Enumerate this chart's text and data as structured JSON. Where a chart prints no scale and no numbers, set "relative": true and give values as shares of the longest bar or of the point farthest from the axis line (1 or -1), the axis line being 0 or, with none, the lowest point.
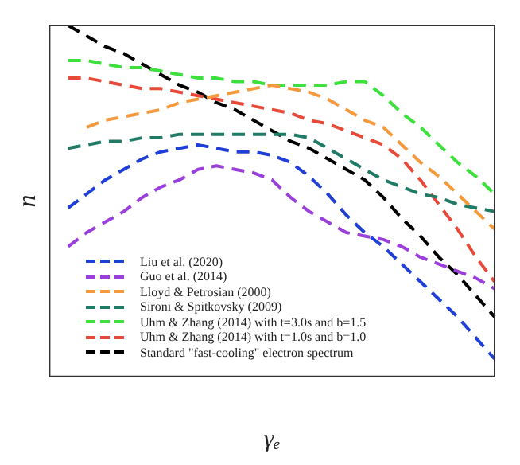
{
  "chart_data": {
    "type": "line",
    "relative": true,
    "xlabel": "γₑ",
    "ylabel": "n",
    "grid": false,
    "legend": "bottom left",
    "line_style": "dashed",
    "marker": "none",
    "categories": [
      null,
      null,
      null,
      null,
      null,
      null,
      null,
      null,
      null,
      null,
      null,
      null,
      null,
      null,
      null,
      null,
      null,
      null,
      null,
      null,
      null,
      null,
      null,
      null,
      null
    ],
    "series": [
      {
        "name": "Liu et al. (2020)",
        "color": "#1f3fd6",
        "values": [
          null,
          0.48,
          0.52,
          0.56,
          0.59,
          0.62,
          0.64,
          0.65,
          0.66,
          0.65,
          0.64,
          0.64,
          0.63,
          0.61,
          0.57,
          0.52,
          0.46,
          0.41,
          0.37,
          0.32,
          0.27,
          0.22,
          0.17,
          0.11,
          0.05
        ]
      },
      {
        "name": "Guo et al. (2014)",
        "color": "#9b3fdc",
        "values": [
          null,
          0.37,
          0.41,
          0.44,
          0.47,
          0.51,
          0.54,
          0.56,
          0.59,
          0.6,
          0.59,
          0.58,
          0.56,
          0.51,
          0.47,
          0.44,
          0.41,
          0.4,
          0.39,
          0.37,
          0.34,
          0.32,
          0.3,
          0.28,
          0.25
        ]
      },
      {
        "name": "Lloyd & Petrosian (2000)",
        "color": "#f59a3c",
        "values": [
          null,
          null,
          0.71,
          0.73,
          0.74,
          0.75,
          0.76,
          0.78,
          0.79,
          0.8,
          0.81,
          0.82,
          0.83,
          0.82,
          0.81,
          0.79,
          0.76,
          0.73,
          0.71,
          0.66,
          0.61,
          0.57,
          0.52,
          0.47,
          0.42
        ]
      },
      {
        "name": "Sironi & Spitkovsky (2009)",
        "color": "#1f7a66",
        "values": [
          null,
          0.65,
          0.66,
          0.67,
          0.67,
          0.68,
          0.68,
          0.69,
          0.69,
          0.69,
          0.69,
          0.69,
          0.69,
          0.69,
          0.68,
          0.65,
          0.62,
          0.59,
          0.56,
          0.54,
          0.52,
          0.51,
          0.49,
          0.48,
          0.47
        ]
      },
      {
        "name": "Uhm & Zhang (2014) with t=3.0s and b=1.5",
        "color": "#3de03d",
        "values": [
          null,
          0.9,
          0.9,
          0.89,
          0.88,
          0.88,
          0.87,
          0.86,
          0.85,
          0.85,
          0.84,
          0.84,
          0.83,
          0.83,
          0.83,
          0.83,
          0.84,
          0.84,
          0.8,
          0.75,
          0.71,
          0.66,
          0.61,
          0.57,
          0.52
        ]
      },
      {
        "name": "Uhm & Zhang (2014) with t=1.0s and b=1.0",
        "color": "#e84a3a",
        "values": [
          null,
          0.85,
          0.85,
          0.84,
          0.83,
          0.82,
          0.82,
          0.81,
          0.8,
          0.79,
          0.78,
          0.77,
          0.76,
          0.75,
          0.73,
          0.72,
          0.7,
          0.68,
          0.66,
          0.62,
          0.56,
          0.49,
          0.42,
          0.34,
          0.27
        ]
      },
      {
        "name": "Standard \"fast-cooling\" electron spectrum",
        "color": "#000000",
        "values": [
          null,
          1.0,
          0.97,
          0.94,
          0.92,
          0.89,
          0.86,
          0.83,
          0.81,
          0.78,
          0.76,
          0.73,
          0.7,
          0.67,
          0.65,
          0.62,
          0.59,
          0.56,
          0.51,
          0.45,
          0.4,
          0.34,
          0.29,
          0.23,
          0.17
        ]
      }
    ]
  }
}
